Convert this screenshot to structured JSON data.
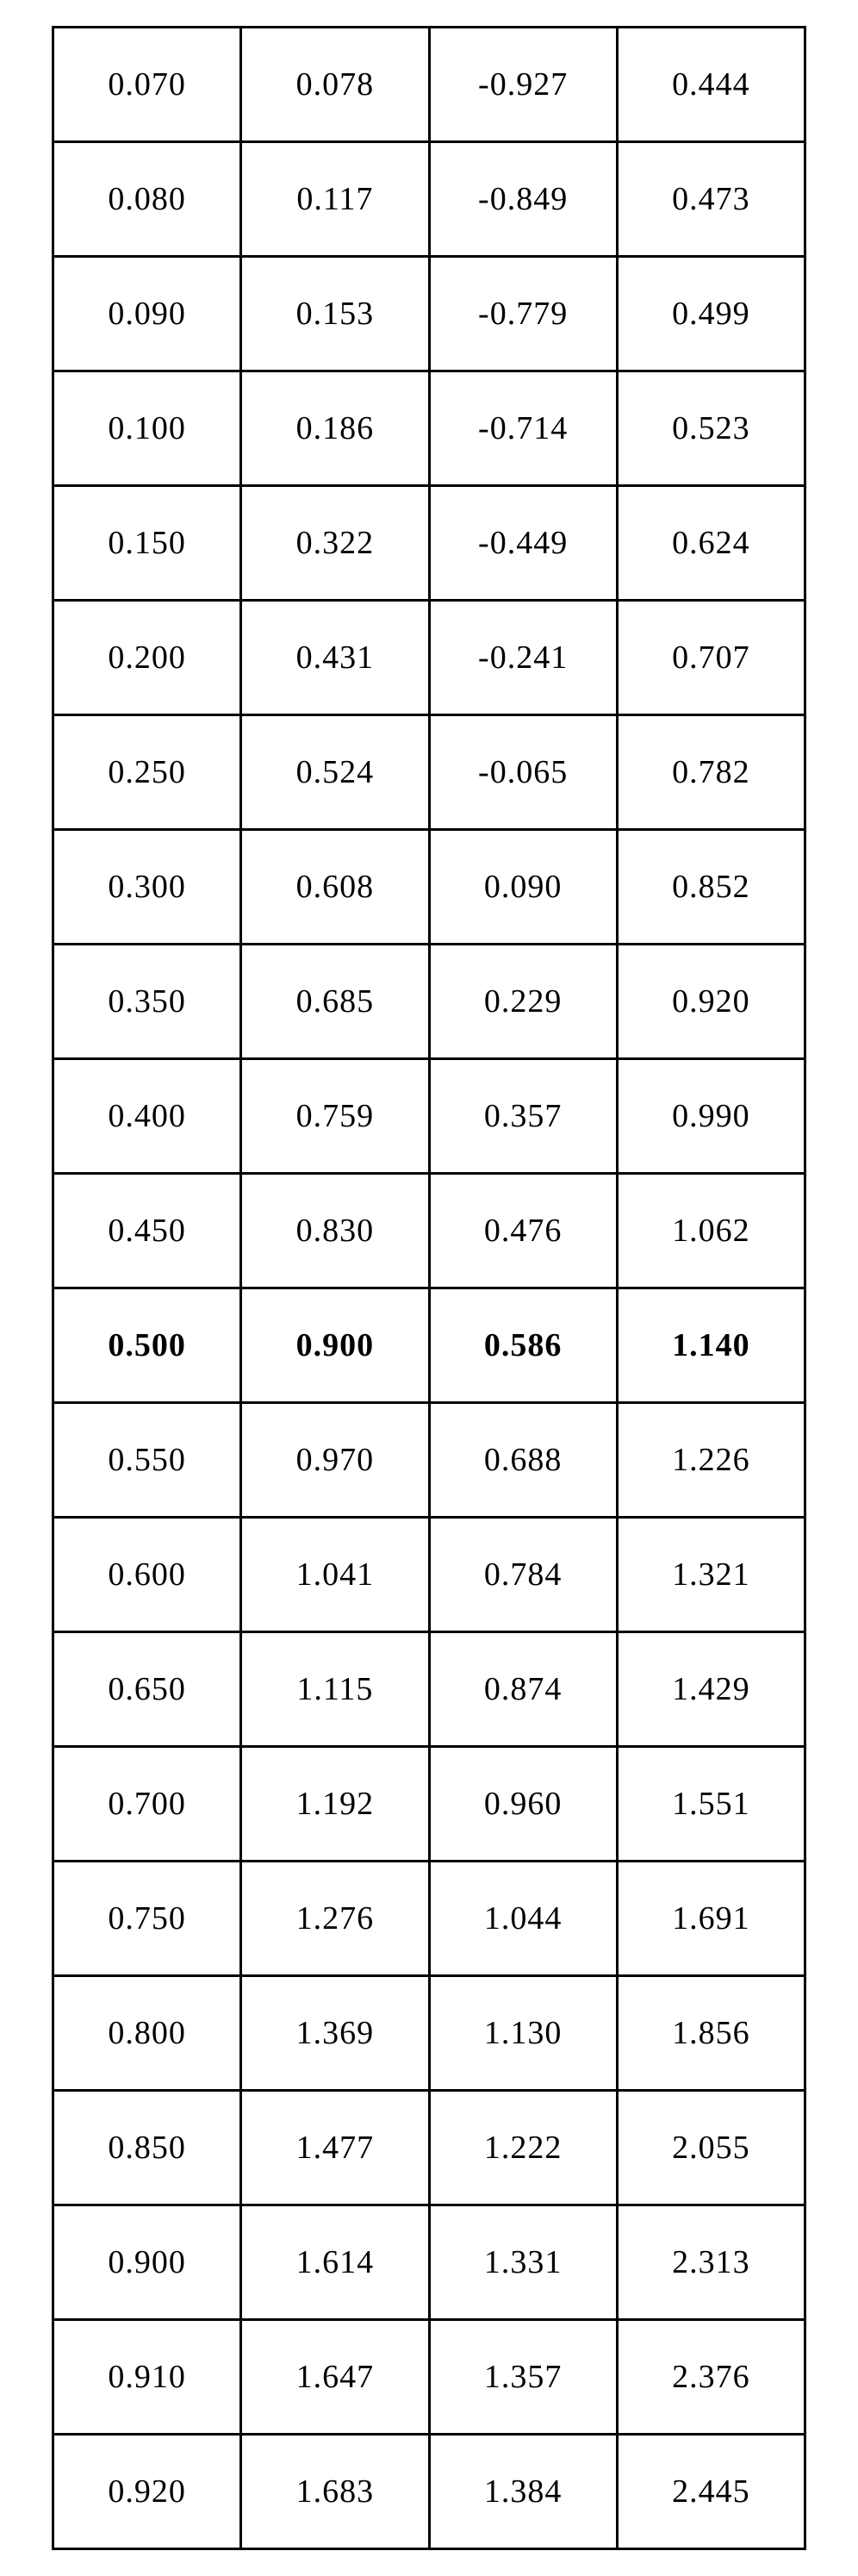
{
  "table": {
    "type": "table",
    "background_color": "#ffffff",
    "border_color": "#000000",
    "border_width": 3,
    "font_family": "Times New Roman",
    "font_size_pt": 28,
    "text_color": "#000000",
    "columns": 4,
    "column_widths_pct": [
      25,
      25,
      25,
      25
    ],
    "bold_row_index": 11,
    "rows": [
      {
        "c0": "0.070",
        "c1": "0.078",
        "c2": "-0.927",
        "c3": "0.444"
      },
      {
        "c0": "0.080",
        "c1": "0.117",
        "c2": "-0.849",
        "c3": "0.473"
      },
      {
        "c0": "0.090",
        "c1": "0.153",
        "c2": "-0.779",
        "c3": "0.499"
      },
      {
        "c0": "0.100",
        "c1": "0.186",
        "c2": "-0.714",
        "c3": "0.523"
      },
      {
        "c0": "0.150",
        "c1": "0.322",
        "c2": "-0.449",
        "c3": "0.624"
      },
      {
        "c0": "0.200",
        "c1": "0.431",
        "c2": "-0.241",
        "c3": "0.707"
      },
      {
        "c0": "0.250",
        "c1": "0.524",
        "c2": "-0.065",
        "c3": "0.782"
      },
      {
        "c0": "0.300",
        "c1": "0.608",
        "c2": "0.090",
        "c3": "0.852"
      },
      {
        "c0": "0.350",
        "c1": "0.685",
        "c2": "0.229",
        "c3": "0.920"
      },
      {
        "c0": "0.400",
        "c1": "0.759",
        "c2": "0.357",
        "c3": "0.990"
      },
      {
        "c0": "0.450",
        "c1": "0.830",
        "c2": "0.476",
        "c3": "1.062"
      },
      {
        "c0": "0.500",
        "c1": "0.900",
        "c2": "0.586",
        "c3": "1.140"
      },
      {
        "c0": "0.550",
        "c1": "0.970",
        "c2": "0.688",
        "c3": "1.226"
      },
      {
        "c0": "0.600",
        "c1": "1.041",
        "c2": "0.784",
        "c3": "1.321"
      },
      {
        "c0": "0.650",
        "c1": "1.115",
        "c2": "0.874",
        "c3": "1.429"
      },
      {
        "c0": "0.700",
        "c1": "1.192",
        "c2": "0.960",
        "c3": "1.551"
      },
      {
        "c0": "0.750",
        "c1": "1.276",
        "c2": "1.044",
        "c3": "1.691"
      },
      {
        "c0": "0.800",
        "c1": "1.369",
        "c2": "1.130",
        "c3": "1.856"
      },
      {
        "c0": "0.850",
        "c1": "1.477",
        "c2": "1.222",
        "c3": "2.055"
      },
      {
        "c0": "0.900",
        "c1": "1.614",
        "c2": "1.331",
        "c3": "2.313"
      },
      {
        "c0": "0.910",
        "c1": "1.647",
        "c2": "1.357",
        "c3": "2.376"
      },
      {
        "c0": "0.920",
        "c1": "1.683",
        "c2": "1.384",
        "c3": "2.445"
      }
    ]
  }
}
